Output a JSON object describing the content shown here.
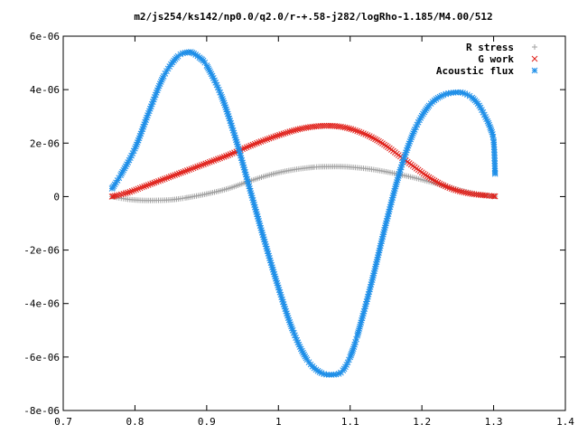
{
  "chart_data": {
    "type": "scatter",
    "title": "m2/js254/ks142/np0.0/q2.0/r-+.58-j282/logRho-1.185/M4.00/512",
    "xlabel": "",
    "ylabel": "",
    "xlim": [
      0.7,
      1.4
    ],
    "ylim": [
      -8e-06,
      6e-06
    ],
    "x_ticks": [
      "0.7",
      "0.8",
      "0.9",
      "1",
      "1.1",
      "1.2",
      "1.3",
      "1.4"
    ],
    "y_ticks": [
      "-8e-06",
      "-6e-06",
      "-4e-06",
      "-2e-06",
      "0",
      "2e-06",
      "4e-06",
      "6e-06"
    ],
    "grid": false,
    "legend_position": "top-right",
    "series": [
      {
        "name": "R stress",
        "marker": "plus",
        "color": "#a0a0a0",
        "x": [
          0.768,
          0.79,
          0.81,
          0.83,
          0.85,
          0.87,
          0.9,
          0.93,
          0.96,
          0.99,
          1.02,
          1.05,
          1.07,
          1.09,
          1.11,
          1.13,
          1.15,
          1.17,
          1.19,
          1.21,
          1.23,
          1.25,
          1.27,
          1.29,
          1.302
        ],
        "y": [
          0.0,
          -1e-07,
          -1.4e-07,
          -1.4e-07,
          -1.2e-07,
          -5e-08,
          1e-07,
          3e-07,
          5.8e-07,
          8.3e-07,
          1e-06,
          1.1e-06,
          1.12e-06,
          1.12e-06,
          1.08e-06,
          1.02e-06,
          9.3e-07,
          8.2e-07,
          7e-07,
          5.6e-07,
          4.1e-07,
          2.6e-07,
          1.3e-07,
          4e-08,
          1e-08
        ]
      },
      {
        "name": "G work",
        "marker": "cross",
        "color": "#e0201a",
        "x": [
          0.768,
          0.79,
          0.81,
          0.83,
          0.85,
          0.87,
          0.89,
          0.91,
          0.93,
          0.95,
          0.97,
          0.99,
          1.01,
          1.03,
          1.05,
          1.07,
          1.09,
          1.11,
          1.13,
          1.15,
          1.17,
          1.19,
          1.21,
          1.23,
          1.25,
          1.27,
          1.29,
          1.302
        ],
        "y": [
          0.0,
          1.5e-07,
          3.5e-07,
          5.5e-07,
          7.5e-07,
          9.5e-07,
          1.15e-06,
          1.35e-06,
          1.55e-06,
          1.78e-06,
          2e-06,
          2.2e-06,
          2.38e-06,
          2.53e-06,
          2.62e-06,
          2.65e-06,
          2.6e-06,
          2.45e-06,
          2.22e-06,
          1.9e-06,
          1.5e-06,
          1.1e-06,
          7.2e-07,
          4.2e-07,
          2.2e-07,
          1e-07,
          4e-08,
          1e-08
        ]
      },
      {
        "name": "Acoustic flux",
        "marker": "star",
        "color": "#1f8fe8",
        "x": [
          0.768,
          0.78,
          0.8,
          0.82,
          0.84,
          0.86,
          0.875,
          0.88,
          0.89,
          0.9,
          0.92,
          0.94,
          0.96,
          0.98,
          1.0,
          1.02,
          1.04,
          1.06,
          1.08,
          1.09,
          1.1,
          1.11,
          1.13,
          1.15,
          1.17,
          1.19,
          1.21,
          1.23,
          1.25,
          1.26,
          1.27,
          1.28,
          1.29,
          1.295,
          1.3,
          1.302
        ],
        "y": [
          3e-07,
          8e-07,
          1.8e-06,
          3.2e-06,
          4.5e-06,
          5.25e-06,
          5.4e-06,
          5.38e-06,
          5.2e-06,
          4.9e-06,
          3.8e-06,
          2.2e-06,
          3e-07,
          -1.6e-06,
          -3.4e-06,
          -5e-06,
          -6.1e-06,
          -6.6e-06,
          -6.65e-06,
          -6.5e-06,
          -6e-06,
          -5.2e-06,
          -3.2e-06,
          -1e-06,
          1e-06,
          2.5e-06,
          3.4e-06,
          3.8e-06,
          3.9e-06,
          3.85e-06,
          3.7e-06,
          3.4e-06,
          2.9e-06,
          2.6e-06,
          2.1e-06,
          8.5e-07
        ]
      }
    ]
  }
}
